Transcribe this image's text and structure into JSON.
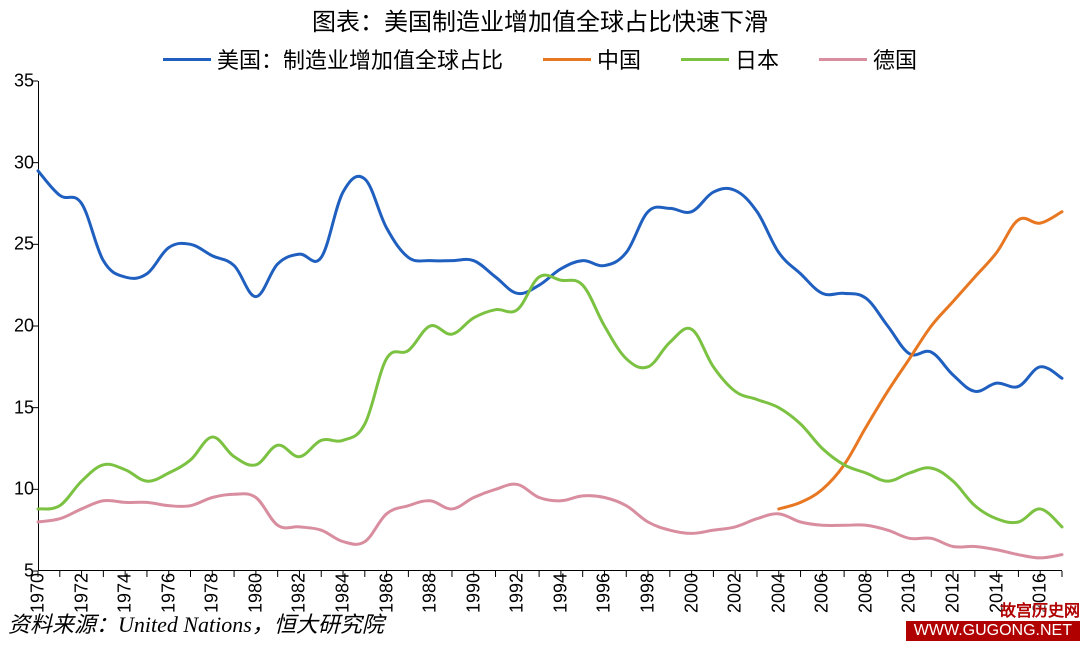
{
  "title": "图表：美国制造业增加值全球占比快速下滑",
  "title_fontsize": 24,
  "source": "资料来源：United Nations，恒大研究院",
  "source_fontsize": 22,
  "watermark": {
    "label1": "故宫历史网",
    "label2": "WWW.GUGONG.NET"
  },
  "legend": [
    {
      "label": "美国：制造业增加值全球占比",
      "color": "#1f5fbf"
    },
    {
      "label": "中国",
      "color": "#e87722"
    },
    {
      "label": "日本",
      "color": "#7cc242"
    },
    {
      "label": "德国",
      "color": "#d98ea0"
    }
  ],
  "legend_fontsize": 22,
  "chart": {
    "type": "line",
    "background_color": "#ffffff",
    "axis_color": "#000000",
    "line_width": 3,
    "ylim": [
      5,
      35
    ],
    "ytick_step": 5,
    "yticks": [
      5,
      10,
      15,
      20,
      25,
      30,
      35
    ],
    "xlim": [
      1970,
      2017
    ],
    "xticks": [
      1970,
      1972,
      1974,
      1976,
      1978,
      1980,
      1982,
      1984,
      1986,
      1988,
      1990,
      1992,
      1994,
      1996,
      1998,
      2000,
      2002,
      2004,
      2006,
      2008,
      2010,
      2012,
      2014,
      2016
    ],
    "tick_fontsize": 18,
    "tick_mark_color": "#000000",
    "series": {
      "usa": {
        "color": "#1f5fbf",
        "x": [
          1970,
          1971,
          1972,
          1973,
          1974,
          1975,
          1976,
          1977,
          1978,
          1979,
          1980,
          1981,
          1982,
          1983,
          1984,
          1985,
          1986,
          1987,
          1988,
          1989,
          1990,
          1991,
          1992,
          1993,
          1994,
          1995,
          1996,
          1997,
          1998,
          1999,
          2000,
          2001,
          2002,
          2003,
          2004,
          2005,
          2006,
          2007,
          2008,
          2009,
          2010,
          2011,
          2012,
          2013,
          2014,
          2015,
          2016,
          2017
        ],
        "y": [
          29.5,
          28.0,
          27.5,
          24.0,
          23.0,
          23.2,
          24.8,
          25.0,
          24.3,
          23.7,
          21.8,
          23.8,
          24.4,
          24.2,
          28.2,
          29.0,
          26.0,
          24.2,
          24.0,
          24.0,
          24.0,
          23.0,
          22.0,
          22.5,
          23.5,
          24.0,
          23.7,
          24.5,
          27.0,
          27.2,
          27.0,
          28.2,
          28.3,
          27.0,
          24.5,
          23.2,
          22.0,
          22.0,
          21.7,
          20.0,
          18.3,
          18.4,
          17.0,
          16.0,
          16.5,
          16.3,
          17.5,
          16.8
        ]
      },
      "china": {
        "color": "#e87722",
        "x": [
          2004,
          2005,
          2006,
          2007,
          2008,
          2009,
          2010,
          2011,
          2012,
          2013,
          2014,
          2015,
          2016,
          2017
        ],
        "y": [
          8.8,
          9.2,
          10.0,
          11.5,
          13.8,
          16.0,
          18.0,
          20.0,
          21.5,
          23.0,
          24.5,
          26.5,
          26.3,
          27.0
        ]
      },
      "japan": {
        "color": "#7cc242",
        "x": [
          1970,
          1971,
          1972,
          1973,
          1974,
          1975,
          1976,
          1977,
          1978,
          1979,
          1980,
          1981,
          1982,
          1983,
          1984,
          1985,
          1986,
          1987,
          1988,
          1989,
          1990,
          1991,
          1992,
          1993,
          1994,
          1995,
          1996,
          1997,
          1998,
          1999,
          2000,
          2001,
          2002,
          2003,
          2004,
          2005,
          2006,
          2007,
          2008,
          2009,
          2010,
          2011,
          2012,
          2013,
          2014,
          2015,
          2016,
          2017
        ],
        "y": [
          8.8,
          9.0,
          10.5,
          11.5,
          11.2,
          10.5,
          11.0,
          11.8,
          13.2,
          12.0,
          11.5,
          12.7,
          12.0,
          13.0,
          13.0,
          14.0,
          18.0,
          18.5,
          20.0,
          19.5,
          20.5,
          21.0,
          21.0,
          23.0,
          22.8,
          22.5,
          20.0,
          18.0,
          17.5,
          19.0,
          19.8,
          17.5,
          16.0,
          15.5,
          15.0,
          14.0,
          12.5,
          11.5,
          11.0,
          10.5,
          11.0,
          11.3,
          10.5,
          9.0,
          8.2,
          8.0,
          8.8,
          7.7
        ]
      },
      "germany": {
        "color": "#d98ea0",
        "x": [
          1970,
          1971,
          1972,
          1973,
          1974,
          1975,
          1976,
          1977,
          1978,
          1979,
          1980,
          1981,
          1982,
          1983,
          1984,
          1985,
          1986,
          1987,
          1988,
          1989,
          1990,
          1991,
          1992,
          1993,
          1994,
          1995,
          1996,
          1997,
          1998,
          1999,
          2000,
          2001,
          2002,
          2003,
          2004,
          2005,
          2006,
          2007,
          2008,
          2009,
          2010,
          2011,
          2012,
          2013,
          2014,
          2015,
          2016,
          2017
        ],
        "y": [
          8.0,
          8.2,
          8.8,
          9.3,
          9.2,
          9.2,
          9.0,
          9.0,
          9.5,
          9.7,
          9.5,
          7.8,
          7.7,
          7.5,
          6.8,
          6.8,
          8.5,
          9.0,
          9.3,
          8.8,
          9.5,
          10.0,
          10.3,
          9.5,
          9.3,
          9.6,
          9.5,
          9.0,
          8.0,
          7.5,
          7.3,
          7.5,
          7.7,
          8.2,
          8.5,
          8.0,
          7.8,
          7.8,
          7.8,
          7.5,
          7.0,
          7.0,
          6.5,
          6.5,
          6.3,
          6.0,
          5.8,
          6.0
        ]
      }
    }
  }
}
